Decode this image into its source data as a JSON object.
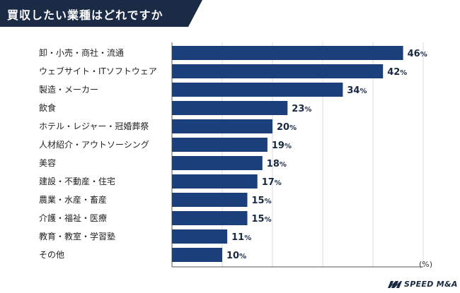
{
  "header": {
    "title": "買収したい業種はどれですか"
  },
  "colors": {
    "bar": "#1b3f7a",
    "banner": "#1b2a45",
    "value_text": "#1a2942",
    "grid": "#d9d9d9"
  },
  "chart_data": {
    "type": "bar",
    "orientation": "horizontal",
    "title": "買収したい業種はどれですか",
    "categories": [
      "卸・小売・商社・流通",
      "ウェブサイト・ITソフトウェア",
      "製造・メーカー",
      "飲食",
      "ホテル・レジャー・冠婚葬祭",
      "人材紹介・アウトソーシング",
      "美容",
      "建設・不動産・住宅",
      "農業・水産・畜産",
      "介護・福祉・医療",
      "教育・教室・学習塾",
      "その他"
    ],
    "values": [
      46,
      42,
      34,
      23,
      20,
      19,
      18,
      17,
      15,
      15,
      11,
      10
    ],
    "value_suffix": "%",
    "unit_label": "(%)",
    "xlim": [
      0,
      50
    ],
    "grid": true,
    "legend": "none"
  },
  "footer": {
    "logo_text": "SPEED M&A",
    "logo_icon": "speed-ma-logo-mark"
  }
}
